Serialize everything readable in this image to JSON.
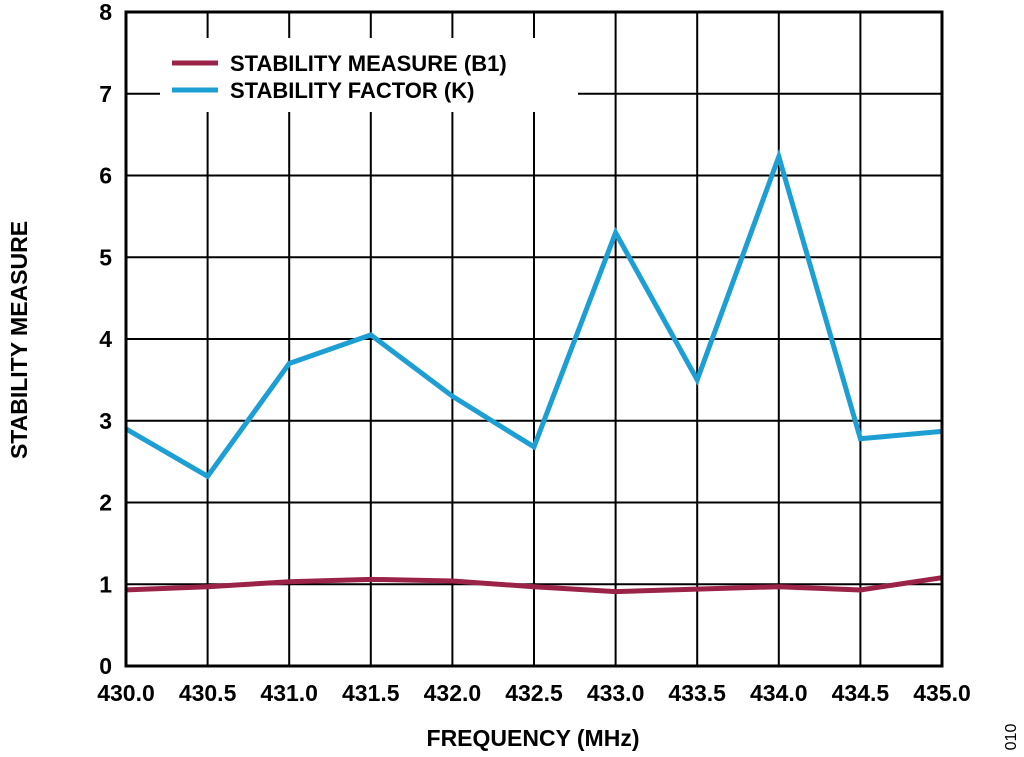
{
  "chart_data": {
    "type": "line",
    "x": [
      430.0,
      430.5,
      431.0,
      431.5,
      432.0,
      432.5,
      433.0,
      433.5,
      434.0,
      434.5,
      435.0
    ],
    "x_tick_labels": [
      "430.0",
      "430.5",
      "431.0",
      "431.5",
      "432.0",
      "432.5",
      "433.0",
      "433.5",
      "434.0",
      "434.5",
      "435.0"
    ],
    "y_tick_labels": [
      "0",
      "1",
      "2",
      "3",
      "4",
      "5",
      "6",
      "7",
      "8"
    ],
    "xlabel": "FREQUENCY (MHz)",
    "ylabel": "STABILITY MEASURE",
    "xlim": [
      430.0,
      435.0
    ],
    "ylim": [
      0,
      8
    ],
    "grid": true,
    "legend_position": "top-left",
    "series": [
      {
        "name": "STABILITY MEASURE (B1)",
        "color": "#9b2348",
        "values": [
          0.93,
          0.97,
          1.03,
          1.06,
          1.04,
          0.97,
          0.91,
          0.94,
          0.97,
          0.93,
          1.08
        ]
      },
      {
        "name": "STABILITY FACTOR (K)",
        "color": "#1e9fd4",
        "values": [
          2.9,
          2.32,
          3.7,
          4.05,
          3.3,
          2.68,
          5.3,
          3.5,
          6.23,
          2.78,
          2.87
        ]
      }
    ]
  },
  "figure_code": "010"
}
